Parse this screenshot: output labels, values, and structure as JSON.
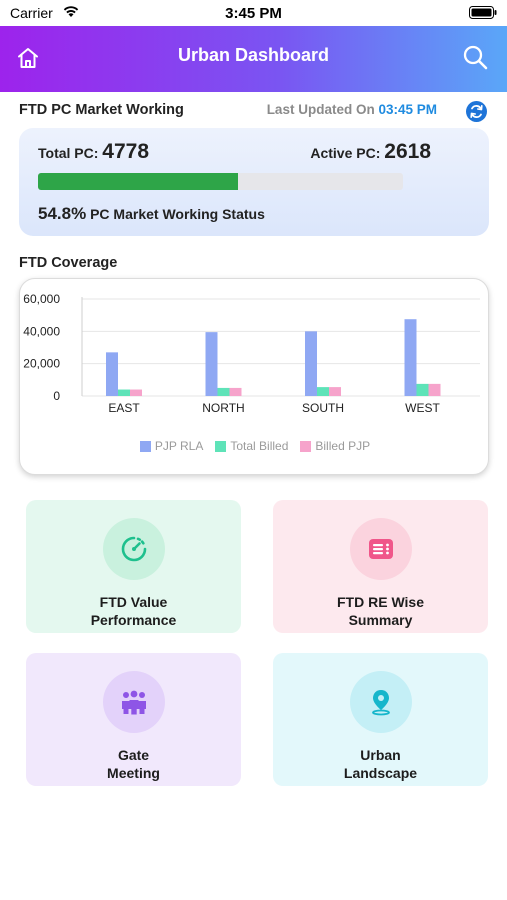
{
  "status_bar": {
    "carrier": "Carrier",
    "time": "3:45 PM"
  },
  "header": {
    "title": "Urban Dashboard"
  },
  "market": {
    "title": "FTD PC Market Working",
    "last_updated_label": "Last Updated On",
    "last_updated_time": "03:45 PM",
    "total_pc_label": "Total PC:",
    "total_pc_value": "4778",
    "active_pc_label": "Active PC:",
    "active_pc_value": "2618",
    "working_pct": "54.8%",
    "working_pct_value": 54.8,
    "working_label": "PC Market Working Status"
  },
  "coverage": {
    "title": "FTD Coverage"
  },
  "chart_data": {
    "type": "bar",
    "categories": [
      "EAST",
      "NORTH",
      "SOUTH",
      "WEST"
    ],
    "series": [
      {
        "name": "PJP RLA",
        "color": "#8fa8f3",
        "values": [
          27000,
          39500,
          40000,
          47500
        ]
      },
      {
        "name": "Total Billed",
        "color": "#5ee3b8",
        "values": [
          4000,
          5000,
          5500,
          7500
        ]
      },
      {
        "name": "Billed PJP",
        "color": "#f6a3cb",
        "values": [
          4000,
          5000,
          5500,
          7500
        ]
      }
    ],
    "yticks": [
      "60,000",
      "40,000",
      "20,000",
      "0"
    ],
    "ylim": [
      0,
      60000
    ],
    "legend_position": "bottom",
    "grid": true
  },
  "tiles": [
    {
      "line1": "FTD Value",
      "line2": "Performance",
      "bg": "#e4f8ef",
      "circle": "#c9f1de",
      "icon": "gauge-icon",
      "color": "#1ec08d"
    },
    {
      "line1": "FTD RE Wise",
      "line2": "Summary",
      "bg": "#fde9ee",
      "circle": "#fbd3de",
      "icon": "summary-icon",
      "color": "#f0568a"
    },
    {
      "line1": "Gate",
      "line2": "Meeting",
      "bg": "#f1e8fc",
      "circle": "#e3d2fa",
      "icon": "group-icon",
      "color": "#8e55e6"
    },
    {
      "line1": "Urban",
      "line2": "Landscape",
      "bg": "#e3f8fb",
      "circle": "#c4eff6",
      "icon": "location-pin-icon",
      "color": "#16b6cb"
    }
  ]
}
